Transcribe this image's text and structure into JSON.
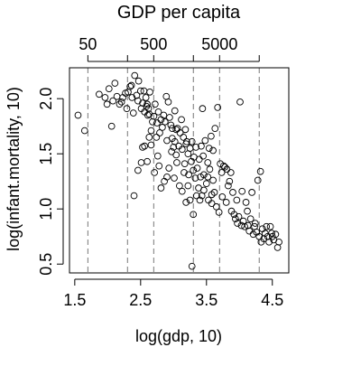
{
  "chart_data": {
    "type": "scatter",
    "title": "GDP per capita",
    "xlabel": "log(gdp, 10)",
    "ylabel": "log(infant.mortality, 10)",
    "xlim": [
      1.42,
      4.75
    ],
    "ylim": [
      0.42,
      2.28
    ],
    "x_ticks": [
      1.5,
      2.5,
      3.5,
      4.5
    ],
    "x_tick_labels": [
      "1.5",
      "2.5",
      "3.5",
      "4.5"
    ],
    "y_ticks": [
      0.5,
      1.0,
      1.5,
      2.0
    ],
    "y_tick_labels": [
      "0.5",
      "1.0",
      "1.5",
      "2.0"
    ],
    "top_axis": {
      "reference_lines": [
        1.699,
        2.301,
        2.699,
        3.301,
        3.699,
        4.301
      ],
      "labeled_ticks": [
        {
          "x": 1.699,
          "label": "50"
        },
        {
          "x": 2.699,
          "label": "500"
        },
        {
          "x": 3.699,
          "label": "5000"
        }
      ]
    },
    "grid": false,
    "legend": "none",
    "points": [
      [
        1.55,
        1.85
      ],
      [
        1.65,
        1.71
      ],
      [
        1.87,
        2.04
      ],
      [
        1.96,
        2.01
      ],
      [
        1.99,
        1.95
      ],
      [
        2.02,
        2.09
      ],
      [
        2.06,
        1.75
      ],
      [
        2.08,
        1.98
      ],
      [
        2.11,
        2.14
      ],
      [
        2.14,
        2.02
      ],
      [
        2.18,
        1.95
      ],
      [
        2.21,
        1.97
      ],
      [
        2.23,
        2.01
      ],
      [
        2.27,
        2.05
      ],
      [
        2.29,
        1.91
      ],
      [
        2.31,
        2.06
      ],
      [
        2.34,
        2.11
      ],
      [
        2.36,
        2.12
      ],
      [
        2.37,
        2.01
      ],
      [
        2.39,
        1.87
      ],
      [
        2.41,
        2.21
      ],
      [
        2.44,
        2.03
      ],
      [
        2.46,
        1.98
      ],
      [
        2.47,
        2.16
      ],
      [
        2.5,
        2.07
      ],
      [
        2.51,
        1.91
      ],
      [
        2.53,
        1.96
      ],
      [
        2.55,
        2.07
      ],
      [
        2.56,
        1.88
      ],
      [
        2.58,
        2.01
      ],
      [
        2.59,
        1.93
      ],
      [
        2.6,
        1.95
      ],
      [
        2.61,
        1.85
      ],
      [
        2.62,
        1.91
      ],
      [
        2.63,
        1.86
      ],
      [
        2.64,
        2.06
      ],
      [
        2.66,
        1.71
      ],
      [
        2.68,
        1.79
      ],
      [
        2.7,
        1.84
      ],
      [
        2.72,
        1.95
      ],
      [
        2.75,
        1.78
      ],
      [
        2.77,
        1.88
      ],
      [
        2.79,
        1.69
      ],
      [
        2.81,
        1.81
      ],
      [
        2.83,
        1.74
      ],
      [
        2.85,
        1.85
      ],
      [
        2.87,
        1.79
      ],
      [
        2.89,
        2.02
      ],
      [
        2.9,
        1.62
      ],
      [
        2.92,
        1.97
      ],
      [
        2.94,
        1.83
      ],
      [
        2.96,
        1.76
      ],
      [
        2.98,
        1.64
      ],
      [
        3.0,
        1.56
      ],
      [
        3.02,
        1.61
      ],
      [
        3.04,
        1.49
      ],
      [
        3.06,
        1.73
      ],
      [
        3.08,
        1.57
      ],
      [
        3.1,
        1.69
      ],
      [
        3.12,
        1.81
      ],
      [
        3.13,
        1.54
      ],
      [
        3.15,
        1.65
      ],
      [
        3.17,
        1.41
      ],
      [
        3.19,
        1.59
      ],
      [
        3.2,
        1.61
      ],
      [
        3.22,
        1.5
      ],
      [
        3.23,
        1.31
      ],
      [
        3.25,
        1.55
      ],
      [
        3.27,
        1.43
      ],
      [
        3.28,
        1.61
      ],
      [
        3.3,
        1.35
      ],
      [
        3.31,
        1.47
      ],
      [
        3.33,
        1.28
      ],
      [
        3.34,
        1.56
      ],
      [
        3.36,
        1.37
      ],
      [
        3.38,
        1.19
      ],
      [
        3.39,
        1.45
      ],
      [
        3.41,
        1.29
      ],
      [
        3.43,
        1.12
      ],
      [
        3.45,
        1.48
      ],
      [
        3.46,
        1.31
      ],
      [
        3.48,
        1.62
      ],
      [
        3.5,
        1.23
      ],
      [
        3.52,
        1.42
      ],
      [
        3.53,
        1.08
      ],
      [
        3.55,
        1.36
      ],
      [
        3.57,
        1.66
      ],
      [
        3.58,
        1.13
      ],
      [
        3.6,
        1.26
      ],
      [
        3.62,
        1.15
      ],
      [
        3.63,
        1.73
      ],
      [
        3.65,
        1.02
      ],
      [
        3.67,
        1.92
      ],
      [
        3.69,
        0.97
      ],
      [
        3.71,
        1.41
      ],
      [
        3.73,
        1.33
      ],
      [
        3.74,
        1.11
      ],
      [
        3.76,
        1.39
      ],
      [
        3.78,
        1.38
      ],
      [
        3.8,
        1.06
      ],
      [
        3.81,
        1.36
      ],
      [
        3.83,
        1.21
      ],
      [
        3.85,
        1.25
      ],
      [
        3.87,
        1.33
      ],
      [
        3.88,
        0.98
      ],
      [
        3.9,
        1.15
      ],
      [
        3.92,
        0.95
      ],
      [
        3.94,
        0.91
      ],
      [
        3.96,
        1.08
      ],
      [
        3.97,
        0.87
      ],
      [
        3.99,
        0.93
      ],
      [
        4.01,
        1.97
      ],
      [
        4.03,
        0.85
      ],
      [
        4.04,
        1.16
      ],
      [
        4.06,
        0.89
      ],
      [
        4.08,
        0.84
      ],
      [
        4.1,
        1.06
      ],
      [
        4.12,
        0.98
      ],
      [
        4.13,
        0.85
      ],
      [
        4.15,
        0.8
      ],
      [
        4.17,
        0.91
      ],
      [
        4.19,
        1.15
      ],
      [
        4.21,
        0.77
      ],
      [
        4.23,
        0.84
      ],
      [
        4.24,
        0.87
      ],
      [
        4.26,
        0.79
      ],
      [
        4.28,
        1.26
      ],
      [
        4.3,
        0.75
      ],
      [
        4.32,
        1.34
      ],
      [
        4.33,
        0.7
      ],
      [
        4.35,
        0.82
      ],
      [
        4.37,
        0.73
      ],
      [
        4.39,
        0.78
      ],
      [
        4.41,
        0.84
      ],
      [
        4.43,
        0.75
      ],
      [
        4.45,
        0.7
      ],
      [
        4.47,
        0.84
      ],
      [
        4.49,
        0.78
      ],
      [
        4.5,
        0.75
      ],
      [
        4.52,
        0.72
      ],
      [
        4.55,
        0.77
      ],
      [
        4.58,
        0.65
      ],
      [
        4.6,
        0.7
      ],
      [
        2.4,
        1.12
      ],
      [
        2.46,
        1.35
      ],
      [
        2.51,
        1.42
      ],
      [
        2.53,
        1.56
      ],
      [
        2.56,
        1.57
      ],
      [
        2.6,
        1.43
      ],
      [
        2.63,
        1.65
      ],
      [
        2.66,
        1.58
      ],
      [
        2.71,
        1.33
      ],
      [
        2.76,
        1.48
      ],
      [
        2.81,
        1.19
      ],
      [
        2.86,
        1.25
      ],
      [
        2.9,
        1.29
      ],
      [
        2.93,
        1.37
      ],
      [
        2.97,
        1.52
      ],
      [
        3.01,
        1.28
      ],
      [
        3.05,
        1.42
      ],
      [
        3.09,
        1.21
      ],
      [
        3.13,
        1.16
      ],
      [
        3.16,
        1.33
      ],
      [
        3.19,
        1.06
      ],
      [
        3.22,
        1.21
      ],
      [
        3.25,
        1.08
      ],
      [
        3.28,
        0.48
      ],
      [
        3.3,
        0.95
      ],
      [
        3.35,
        1.12
      ],
      [
        3.4,
        1.08
      ],
      [
        3.46,
        1.17
      ],
      [
        3.52,
        1.29
      ],
      [
        3.58,
        1.05
      ],
      [
        3.02,
        1.89
      ],
      [
        3.04,
        1.72
      ],
      [
        2.98,
        1.73
      ],
      [
        2.74,
        1.65
      ],
      [
        2.78,
        1.39
      ],
      [
        3.18,
        1.72
      ],
      [
        3.42,
        1.57
      ],
      [
        3.44,
        1.91
      ],
      [
        3.54,
        1.55
      ],
      [
        3.6,
        1.53
      ]
    ]
  }
}
